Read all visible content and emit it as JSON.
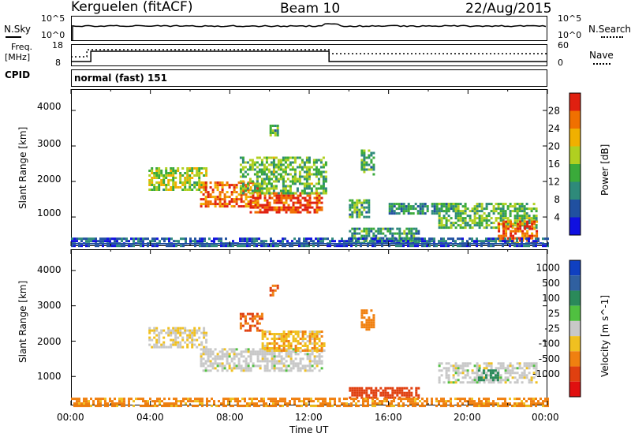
{
  "header": {
    "station": "Kerguelen (fitACF)",
    "beam": "Beam 10",
    "date": "22/Aug/2015"
  },
  "noise_panel": {
    "left_label": "N.Sky",
    "left_ticks": [
      "10^5",
      "10^0"
    ],
    "right_label": "N.Search",
    "right_ticks": [
      "10^5",
      "10^0"
    ]
  },
  "freq_panel": {
    "left_label_1": "Freq.",
    "left_label_2": "[MHz]",
    "left_ticks": [
      "18",
      "8"
    ],
    "right_label": "Nave",
    "right_ticks": [
      "60",
      "0"
    ]
  },
  "cpid_panel": {
    "label": "CPID",
    "mode": "normal (fast) 151"
  },
  "x_axis": {
    "title": "Time UT",
    "ticks": [
      "00:00",
      "04:00",
      "08:00",
      "12:00",
      "16:00",
      "20:00",
      "00:00"
    ]
  },
  "chart_data": [
    {
      "type": "heatmap",
      "id": "power",
      "ylabel": "Slant Range [km]",
      "yticks": [
        "1000",
        "2000",
        "3000",
        "4000"
      ],
      "ylim": [
        180,
        4600
      ],
      "xlim": [
        0,
        24
      ],
      "colorbar": {
        "label": "Power [dB]",
        "ticks": [
          "4",
          "8",
          "12",
          "16",
          "20",
          "24",
          "28"
        ],
        "colors": [
          "#1010e0",
          "#2050a0",
          "#2e8a7a",
          "#3aaa3a",
          "#b0d020",
          "#f0b000",
          "#f07000",
          "#e02010"
        ]
      },
      "regions": [
        {
          "t0": 3.9,
          "t1": 6.8,
          "r0": 1800,
          "r1": 2400,
          "level": 0.55
        },
        {
          "t0": 6.5,
          "t1": 9.5,
          "r0": 1300,
          "r1": 2000,
          "level": 0.85
        },
        {
          "t0": 9.0,
          "t1": 12.6,
          "r0": 1150,
          "r1": 1700,
          "level": 0.95
        },
        {
          "t0": 8.5,
          "t1": 12.8,
          "r0": 1700,
          "r1": 2700,
          "level": 0.45
        },
        {
          "t0": 10.0,
          "t1": 10.4,
          "r0": 3300,
          "r1": 3600,
          "level": 0.4
        },
        {
          "t0": 14.0,
          "t1": 15.0,
          "r0": 1000,
          "r1": 1500,
          "level": 0.4
        },
        {
          "t0": 14.6,
          "t1": 15.3,
          "r0": 2200,
          "r1": 2900,
          "level": 0.4
        },
        {
          "t0": 16.0,
          "t1": 19.5,
          "r0": 1100,
          "r1": 1400,
          "level": 0.3
        },
        {
          "t0": 18.5,
          "t1": 23.5,
          "r0": 700,
          "r1": 1400,
          "level": 0.45
        },
        {
          "t0": 21.5,
          "t1": 23.5,
          "r0": 300,
          "r1": 900,
          "level": 0.9
        },
        {
          "t0": 14.0,
          "t1": 17.5,
          "r0": 300,
          "r1": 700,
          "level": 0.35
        },
        {
          "t0": 0.0,
          "t1": 24.0,
          "r0": 180,
          "r1": 420,
          "level": 0.15
        }
      ]
    },
    {
      "type": "heatmap",
      "id": "velocity",
      "ylabel": "Slant Range [km]",
      "yticks": [
        "1000",
        "2000",
        "3000",
        "4000"
      ],
      "ylim": [
        180,
        4600
      ],
      "xlim": [
        0,
        24
      ],
      "colorbar": {
        "label": "Velocity [m s^-1]",
        "ticks": [
          "1000",
          "500",
          "100",
          "25",
          "-25",
          "-100",
          "-500",
          "-1000"
        ],
        "colors": [
          "#1040c0",
          "#3060a0",
          "#2a8a5a",
          "#50c040",
          "#c8c8c8",
          "#f0c020",
          "#f08010",
          "#e04010",
          "#e01010"
        ]
      },
      "regions": [
        {
          "t0": 3.9,
          "t1": 6.8,
          "r0": 1800,
          "r1": 2400,
          "vel": -25
        },
        {
          "t0": 6.5,
          "t1": 12.6,
          "r0": 1150,
          "r1": 1800,
          "vel": 0
        },
        {
          "t0": 8.5,
          "t1": 9.6,
          "r0": 2300,
          "r1": 2800,
          "vel": -300
        },
        {
          "t0": 9.6,
          "t1": 12.8,
          "r0": 1700,
          "r1": 2300,
          "vel": -50
        },
        {
          "t0": 10.0,
          "t1": 10.4,
          "r0": 3300,
          "r1": 3600,
          "vel": -300
        },
        {
          "t0": 14.6,
          "t1": 15.3,
          "r0": 2300,
          "r1": 2900,
          "vel": -150
        },
        {
          "t0": 14.0,
          "t1": 17.5,
          "r0": 400,
          "r1": 700,
          "vel": -600
        },
        {
          "t0": 18.5,
          "t1": 23.5,
          "r0": 800,
          "r1": 1400,
          "vel": 0
        },
        {
          "t0": 20.5,
          "t1": 21.5,
          "r0": 900,
          "r1": 1200,
          "vel": 150
        },
        {
          "t0": 0.0,
          "t1": 24.0,
          "r0": 180,
          "r1": 400,
          "vel": -80
        }
      ]
    }
  ]
}
